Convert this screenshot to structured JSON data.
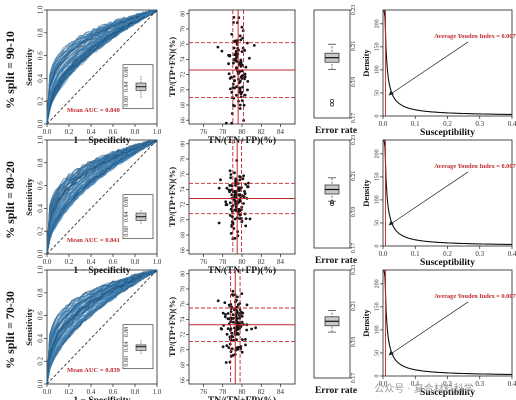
{
  "watermark": "公众号 · 复合材料科学",
  "colors": {
    "roc_fill": "#3f7fb0",
    "roc_line": "#1c4f78",
    "ref_red": "#c0282d",
    "point": "#151515",
    "box_fill": "#c9c9c9"
  },
  "chart_data": [
    {
      "type": "line",
      "row": "% split = 90-10",
      "title": "",
      "xlabel": "1 − Specificity",
      "ylabel": "Sensitivity",
      "xlim": [
        0,
        1
      ],
      "ylim": [
        0,
        1
      ],
      "xticks": [
        "0.0",
        "0.2",
        "0.4",
        "0.6",
        "0.8",
        "1.0"
      ],
      "yticks": [
        "0.0",
        "0.2",
        "0.4",
        "0.6",
        "0.8",
        "1.0"
      ],
      "annotation": "Mean AUC = 0.840",
      "mean_auc": 0.84,
      "inset_box": {
        "median": 0.84,
        "q1": 0.83,
        "q3": 0.85,
        "min": 0.81,
        "max": 0.87,
        "ticks": [
          "0.80",
          "0.84",
          "0.88"
        ]
      }
    },
    {
      "type": "scatter",
      "row": "% split = 90-10",
      "xlabel": "TN/(TN+FP)(%)",
      "ylabel": "TP/(TP+FN)(%)",
      "xlim": [
        74.5,
        85.5
      ],
      "ylim": [
        65.5,
        80.5
      ],
      "xticks": [
        "76",
        "78",
        "80",
        "82",
        "84"
      ],
      "yticks": [
        "66",
        "68",
        "70",
        "72",
        "74",
        "76",
        "78",
        "80"
      ],
      "mean_x": 79.6,
      "sd_x": 0.55,
      "mean_y": 72.6,
      "sd_y": 3.6
    },
    {
      "type": "box",
      "row": "% split = 90-10",
      "xlabel": "Error rate",
      "ylim": [
        0.17,
        0.23
      ],
      "yticks": [
        "0.17",
        "0.19",
        "0.21",
        "0.23"
      ],
      "median": 0.2035,
      "q1": 0.201,
      "q3": 0.206,
      "min": 0.197,
      "max": 0.211,
      "outliers": [
        0.1795,
        0.1775
      ]
    },
    {
      "type": "line",
      "row": "% split = 90-10",
      "xlabel": "Susceptibility",
      "ylabel": "Density",
      "xlim": [
        0,
        0.4
      ],
      "ylim": [
        0,
        230
      ],
      "xticks": [
        "0.0",
        "0.1",
        "0.2",
        "0.3",
        "0.4"
      ],
      "yticks": [
        "0",
        "50",
        "100",
        "150",
        "200"
      ],
      "annotation": "Average Youden Index = 0.00793",
      "youden": 0.00793
    },
    {
      "type": "line",
      "row": "% split = 80-20",
      "xlabel": "1 − Specificity",
      "ylabel": "Sensitivity",
      "xlim": [
        0,
        1
      ],
      "ylim": [
        0,
        1
      ],
      "xticks": [
        "0.0",
        "0.2",
        "0.4",
        "0.6",
        "0.8",
        "1.0"
      ],
      "yticks": [
        "0.0",
        "0.2",
        "0.4",
        "0.6",
        "0.8",
        "1.0"
      ],
      "annotation": "Mean AUC = 0.841",
      "mean_auc": 0.841,
      "inset_box": {
        "median": 0.84,
        "q1": 0.83,
        "q3": 0.85,
        "min": 0.82,
        "max": 0.86,
        "ticks": [
          "0.80",
          "0.84",
          "0.88"
        ]
      }
    },
    {
      "type": "scatter",
      "row": "% split = 80-20",
      "xlabel": "TN/(TN+FP)(%)",
      "ylabel": "TP/(TP+FN)(%)",
      "xlim": [
        74.5,
        85.5
      ],
      "ylim": [
        65.5,
        80.5
      ],
      "xticks": [
        "76",
        "78",
        "80",
        "82",
        "84"
      ],
      "yticks": [
        "66",
        "68",
        "70",
        "72",
        "74",
        "76",
        "78",
        "80"
      ],
      "mean_x": 79.5,
      "sd_x": 0.45,
      "mean_y": 72.8,
      "sd_y": 2.0
    },
    {
      "type": "box",
      "row": "% split = 80-20",
      "xlabel": "Error rate",
      "ylim": [
        0.17,
        0.23
      ],
      "yticks": [
        "0.17",
        "0.19",
        "0.21",
        "0.23"
      ],
      "median": 0.2025,
      "q1": 0.2,
      "q3": 0.205,
      "min": 0.196,
      "max": 0.209,
      "outliers": [
        0.1955,
        0.1945
      ]
    },
    {
      "type": "line",
      "row": "% split = 80-20",
      "xlabel": "Susceptibility",
      "ylabel": "Density",
      "xlim": [
        0,
        0.4
      ],
      "ylim": [
        0,
        230
      ],
      "xticks": [
        "0.0",
        "0.1",
        "0.2",
        "0.3",
        "0.4"
      ],
      "yticks": [
        "0",
        "50",
        "100",
        "150",
        "200"
      ],
      "annotation": "Average Youden Index = 0.00762",
      "youden": 0.00762
    },
    {
      "type": "line",
      "row": "% split = 70-30",
      "xlabel": "1 − Specificity",
      "ylabel": "Sensitivity",
      "xlim": [
        0,
        1
      ],
      "ylim": [
        0,
        1
      ],
      "xticks": [
        "0.0",
        "0.2",
        "0.4",
        "0.6",
        "0.8",
        "1.0"
      ],
      "yticks": [
        "0.0",
        "0.2",
        "0.4",
        "0.6",
        "0.8",
        "1.0"
      ],
      "annotation": "Mean AUC = 0.839",
      "mean_auc": 0.839,
      "inset_box": {
        "median": 0.84,
        "q1": 0.83,
        "q3": 0.845,
        "min": 0.82,
        "max": 0.86,
        "ticks": [
          "0.80",
          "0.84",
          "0.88"
        ]
      }
    },
    {
      "type": "scatter",
      "row": "% split = 70-30",
      "xlabel": "TN/(TN+FP)(%)",
      "ylabel": "TP/(TP+FN)(%)",
      "xlim": [
        74.5,
        85.5
      ],
      "ylim": [
        65.5,
        80.5
      ],
      "xticks": [
        "76",
        "78",
        "80",
        "82",
        "84"
      ],
      "yticks": [
        "66",
        "68",
        "70",
        "72",
        "74",
        "76",
        "78",
        "80"
      ],
      "mean_x": 79.3,
      "sd_x": 0.5,
      "mean_y": 73.3,
      "sd_y": 2.2
    },
    {
      "type": "box",
      "row": "% split = 70-30",
      "xlabel": "Error rate",
      "ylim": [
        0.17,
        0.23
      ],
      "yticks": [
        "0.17",
        "0.19",
        "0.21",
        "0.23"
      ],
      "median": 0.2015,
      "q1": 0.199,
      "q3": 0.204,
      "min": 0.1955,
      "max": 0.2075,
      "outliers": []
    },
    {
      "type": "line",
      "row": "% split = 70-30",
      "xlabel": "Susceptibility",
      "ylabel": "Density",
      "xlim": [
        0,
        0.4
      ],
      "ylim": [
        0,
        230
      ],
      "xticks": [
        "0.0",
        "0.1",
        "0.2",
        "0.3",
        "0.4"
      ],
      "yticks": [
        "0",
        "50",
        "100",
        "150",
        "200"
      ],
      "annotation": "Average Youden Index = 0.00791",
      "youden": 0.00791
    }
  ]
}
